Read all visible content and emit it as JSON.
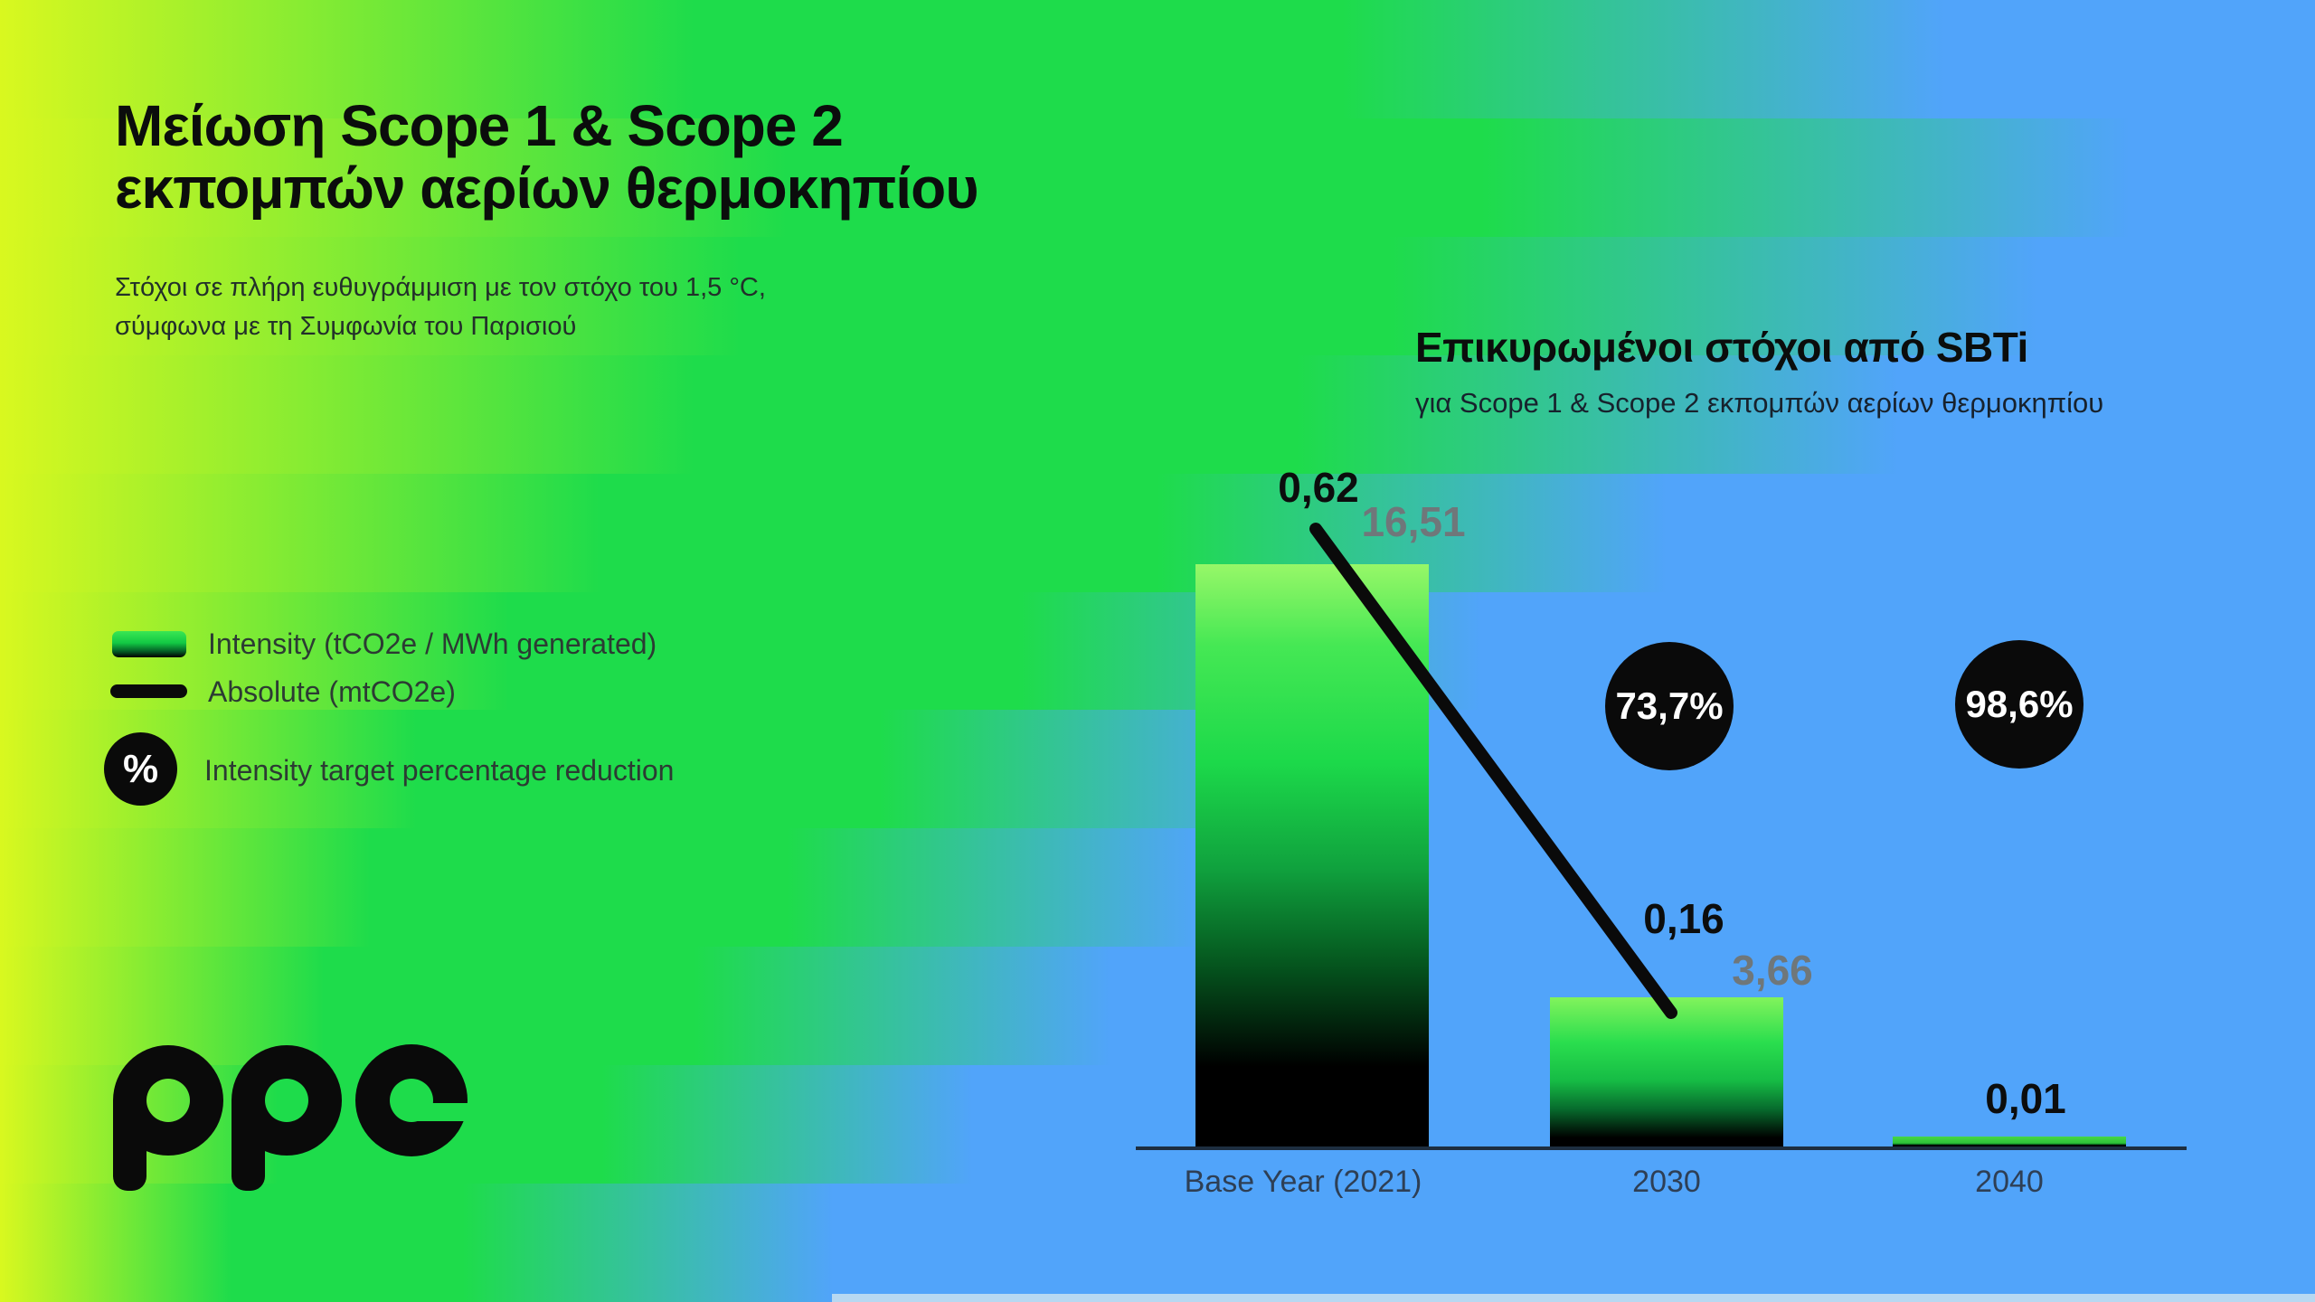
{
  "header": {
    "title_line1": "Μείωση Scope 1 & Scope 2",
    "title_line2": "εκπομπών αερίων θερμοκηπίου",
    "subtitle_line1": "Στόχοι σε πλήρη ευθυγράμμιση με τον στόχο του 1,5 °C,",
    "subtitle_line2": "σύμφωνα με τη Συμφωνία του Παρισιού"
  },
  "sbti": {
    "heading": "Επικυρωμένοι στόχοι από SBTi",
    "subheading": "για Scope 1 & Scope 2 εκπομπών αερίων θερμοκηπίου"
  },
  "legend": {
    "intensity_label": "Intensity (tCO2e / MWh generated)",
    "absolute_label": "Absolute (mtCO2e)",
    "percent_symbol": "%",
    "reduction_label": "Intensity target percentage reduction"
  },
  "logo": {
    "text": "ppc"
  },
  "colors": {
    "yellow": "#d9f81f",
    "green": "#1edc4b",
    "blue": "#51a4fa",
    "badge_black": "#0a0a0a",
    "gray_value": "#6f777a"
  },
  "chart_data": {
    "type": "bar",
    "title": "Επικυρωμένοι στόχοι από SBTi",
    "categories": [
      "Base Year (2021)",
      "2030",
      "2040"
    ],
    "series": [
      {
        "name": "Intensity (tCO2e / MWh generated)",
        "type": "bar",
        "values": [
          0.62,
          0.16,
          0.01
        ],
        "labels": [
          "0,62",
          "0,16",
          "0,01"
        ]
      },
      {
        "name": "Absolute (mtCO2e)",
        "type": "line",
        "values": [
          16.51,
          3.66,
          null
        ],
        "labels": [
          "16,51",
          "3,66",
          ""
        ]
      }
    ],
    "reduction_badges": [
      {
        "category": "2030",
        "label": "73,7%"
      },
      {
        "category": "2040",
        "label": "98,6%"
      }
    ],
    "ylim": [
      0,
      0.62
    ],
    "grid": false,
    "legend_position": "left"
  }
}
